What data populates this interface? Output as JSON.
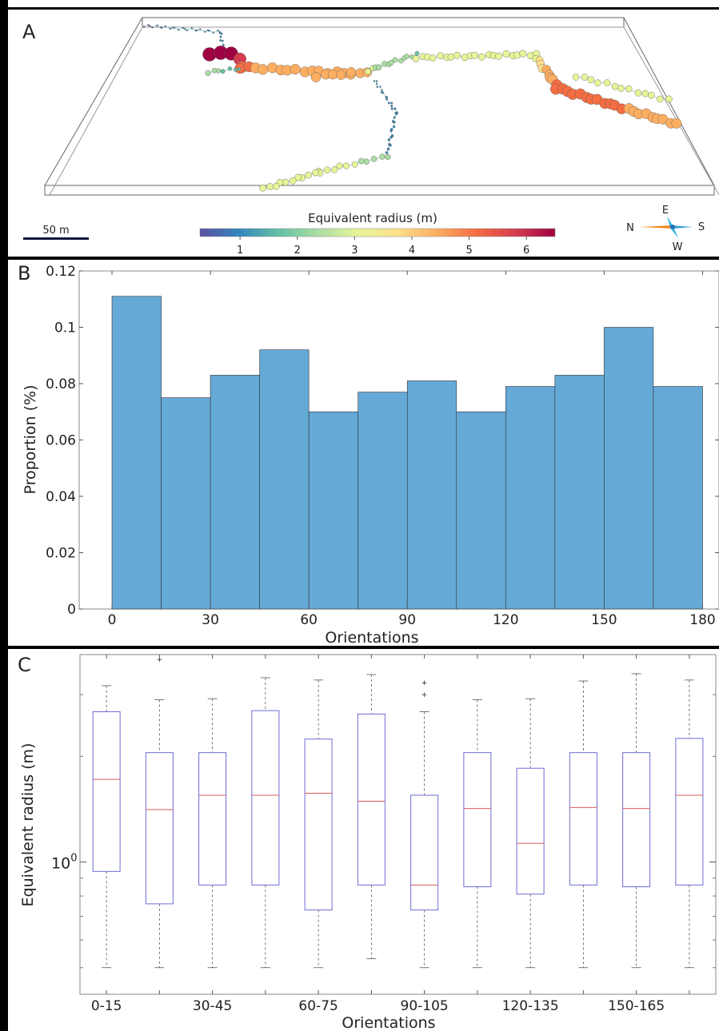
{
  "panels": {
    "a": {
      "label": "A",
      "scalebar_label": "50 m",
      "colorbar_title": "Equivalent radius (m)",
      "colorbar_ticks": [
        1,
        2,
        3,
        4,
        5,
        6
      ],
      "colormap": [
        "#5e4fa2",
        "#3288bd",
        "#66c2a5",
        "#abdda4",
        "#e6f598",
        "#fee08b",
        "#fdae61",
        "#f46d43",
        "#d53e4f",
        "#9e0142"
      ],
      "compass": {
        "n": "N",
        "e": "E",
        "s": "S",
        "w": "W"
      }
    },
    "b": {
      "label": "B"
    },
    "c": {
      "label": "C"
    }
  },
  "chart_data": [
    {
      "type": "bar",
      "xlabel": "Orientations",
      "ylabel": "Proportion (%)",
      "bin_edges": [
        0,
        15,
        30,
        45,
        60,
        75,
        90,
        105,
        120,
        135,
        150,
        165,
        180
      ],
      "values": [
        0.111,
        0.075,
        0.083,
        0.092,
        0.07,
        0.077,
        0.081,
        0.07,
        0.079,
        0.083,
        0.1,
        0.079
      ],
      "xlim": [
        -10,
        185
      ],
      "ylim": [
        0,
        0.12
      ],
      "xticks": [
        0,
        30,
        60,
        90,
        120,
        150,
        180
      ],
      "yticks": [
        0,
        0.02,
        0.04,
        0.06,
        0.08,
        0.1,
        0.12
      ],
      "ytick_labels": [
        "0",
        "0.02",
        "0.04",
        "0.06",
        "0.08",
        "0.1",
        "0.12"
      ],
      "color": "#65a9d7"
    },
    {
      "type": "box",
      "xlabel": "Orientations",
      "ylabel": "Equivalent radius (m)",
      "yscale": "log",
      "ylim": [
        0.42,
        3.9
      ],
      "ytick_label": "10",
      "ytick_label_exp": "0",
      "categories": [
        "0-15",
        "15-30",
        "30-45",
        "45-60",
        "60-75",
        "75-90",
        "90-105",
        "105-120",
        "120-135",
        "135-150",
        "150-165",
        "165-180"
      ],
      "tick_labels": [
        "0-15",
        "",
        "30-45",
        "",
        "60-75",
        "",
        "90-105",
        "",
        "120-135",
        "",
        "150-165",
        ""
      ],
      "boxes": [
        {
          "whislo": 0.5,
          "q1": 0.94,
          "med": 1.72,
          "q3": 2.68,
          "whishi": 3.18,
          "fliers": []
        },
        {
          "whislo": 0.5,
          "q1": 0.76,
          "med": 1.41,
          "q3": 2.05,
          "whishi": 2.9,
          "fliers": [
            3.78
          ]
        },
        {
          "whislo": 0.5,
          "q1": 0.86,
          "med": 1.55,
          "q3": 2.05,
          "whishi": 2.92,
          "fliers": []
        },
        {
          "whislo": 0.5,
          "q1": 0.86,
          "med": 1.55,
          "q3": 2.7,
          "whishi": 3.35,
          "fliers": []
        },
        {
          "whislo": 0.5,
          "q1": 0.73,
          "med": 1.57,
          "q3": 2.24,
          "whishi": 3.3,
          "fliers": []
        },
        {
          "whislo": 0.53,
          "q1": 0.86,
          "med": 1.49,
          "q3": 2.64,
          "whishi": 3.42,
          "fliers": []
        },
        {
          "whislo": 0.5,
          "q1": 0.73,
          "med": 0.86,
          "q3": 1.55,
          "whishi": 2.68,
          "fliers": [
            3.0,
            3.25
          ]
        },
        {
          "whislo": 0.5,
          "q1": 0.85,
          "med": 1.42,
          "q3": 2.05,
          "whishi": 2.9,
          "fliers": []
        },
        {
          "whislo": 0.5,
          "q1": 0.81,
          "med": 1.13,
          "q3": 1.85,
          "whishi": 2.92,
          "fliers": []
        },
        {
          "whislo": 0.5,
          "q1": 0.86,
          "med": 1.43,
          "q3": 2.05,
          "whishi": 3.28,
          "fliers": []
        },
        {
          "whislo": 0.5,
          "q1": 0.85,
          "med": 1.42,
          "q3": 2.05,
          "whishi": 3.44,
          "fliers": []
        },
        {
          "whislo": 0.5,
          "q1": 0.86,
          "med": 1.55,
          "q3": 2.25,
          "whishi": 3.3,
          "fliers": []
        }
      ],
      "box_color": "#6d6dd6",
      "median_color": "#e05a5a",
      "whisker_color": "#555555",
      "flier_color": "#e05a5a"
    }
  ]
}
